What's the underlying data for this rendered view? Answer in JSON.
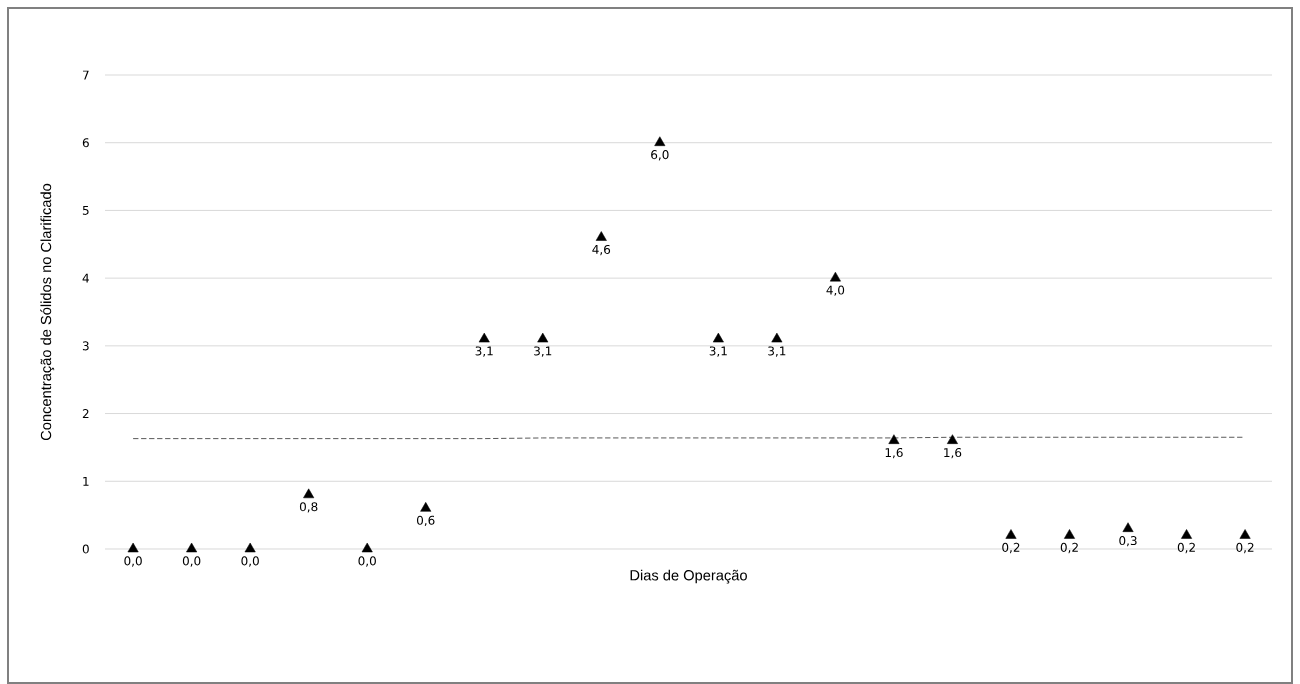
{
  "chart_data": {
    "type": "scatter",
    "xlabel": "Dias de Operação",
    "ylabel": "Concentração de Sólidos no Clarificado",
    "categories": [
      null,
      null,
      null,
      null,
      null,
      null,
      null,
      null,
      null,
      null,
      null,
      null,
      null,
      null,
      null,
      null,
      null,
      null,
      null,
      null
    ],
    "series": [
      {
        "color": "#000000",
        "marker": "triangle",
        "values": [
          0.0,
          0.0,
          0.0,
          0.8,
          0.0,
          0.6,
          3.1,
          3.1,
          4.6,
          6.0,
          3.1,
          3.1,
          4.0,
          1.6,
          1.6,
          0.2,
          0.2,
          0.3,
          0.2,
          0.2
        ],
        "value_labels": [
          "0,0",
          "0,0",
          "0,0",
          "0,8",
          "0,0",
          "0,6",
          "3,1",
          "3,1",
          "4,6",
          "6,0",
          "3,1",
          "3,1",
          "4,0",
          "1,6",
          "1,6",
          "0,2",
          "0,2",
          "0,3",
          "0,2",
          "0,2"
        ]
      },
      {
        "type": "line",
        "color": "#595959",
        "line_style": "dashed",
        "marker": "none",
        "values": [
          1.63,
          1.63,
          1.63,
          1.63,
          1.63,
          1.63,
          1.63,
          1.64,
          1.64,
          1.64,
          1.64,
          1.64,
          1.64,
          1.64,
          1.65,
          1.65,
          1.65,
          1.65,
          1.65,
          1.65
        ]
      }
    ],
    "ylim": [
      0,
      7
    ],
    "yticks": [
      0,
      1,
      2,
      3,
      4,
      5,
      6,
      7
    ],
    "grid": "y"
  }
}
